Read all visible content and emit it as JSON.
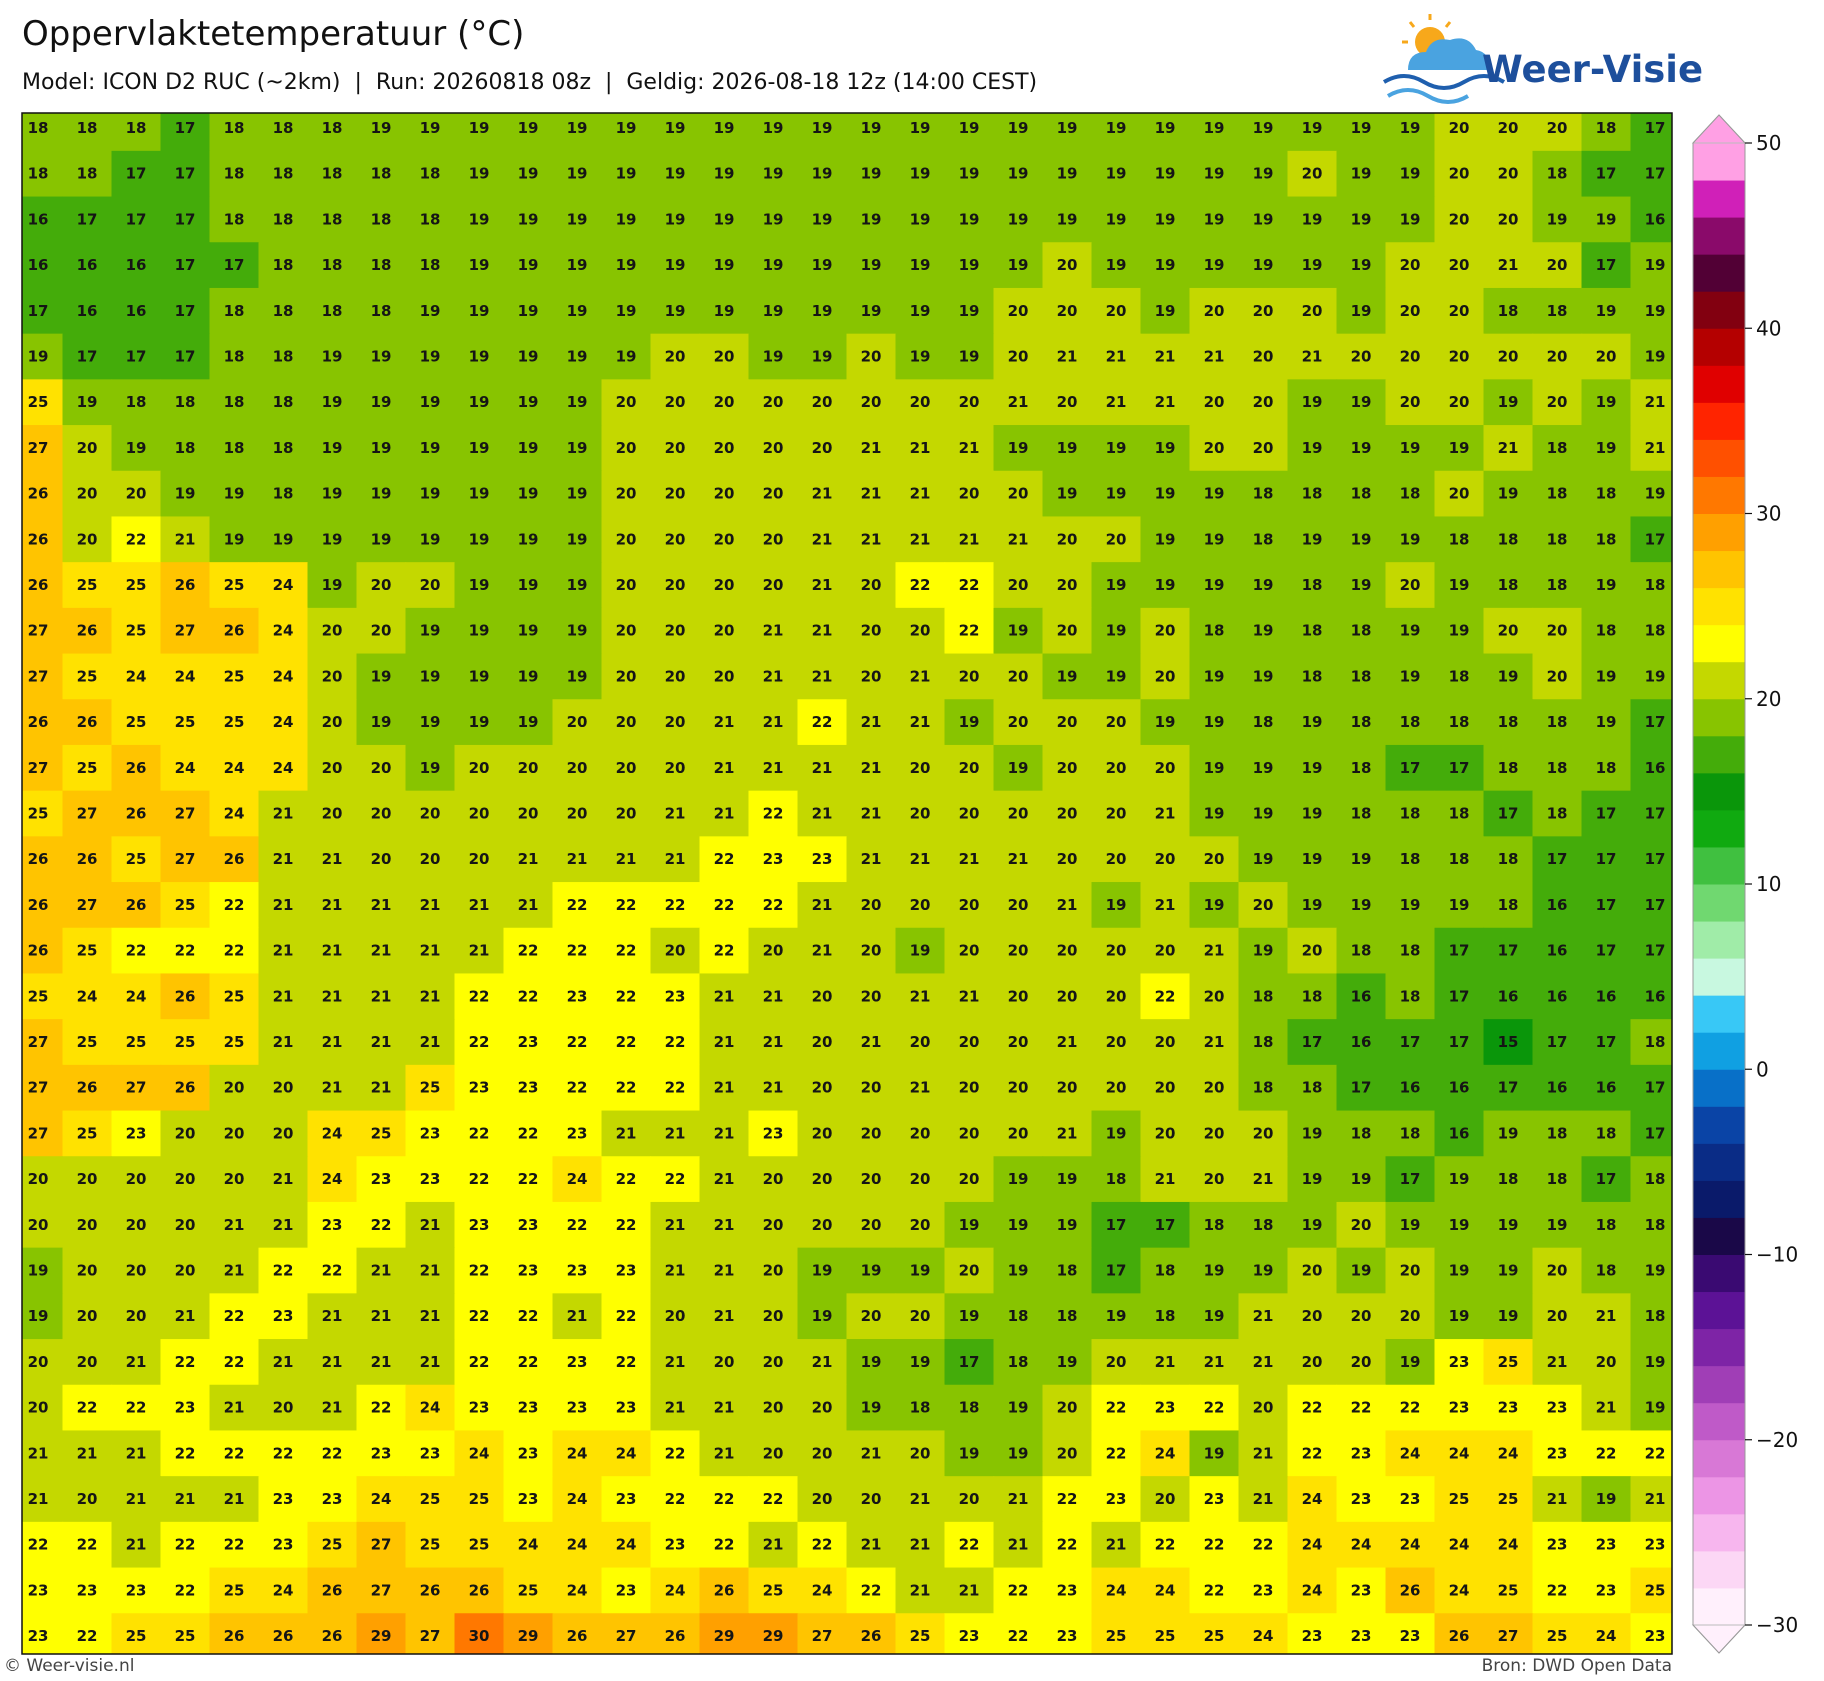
{
  "header": {
    "title": "Oppervlaktetemperatuur (°C)",
    "subtitle": "Model: ICON D2 RUC (~2km)  |  Run: 20260818 08z  |  Geldig: 2026-08-18 12z (14:00 CEST)",
    "logo": "Weer-Visie"
  },
  "map": {
    "grid": [
      [
        18,
        18,
        18,
        17,
        18,
        18,
        18,
        19,
        19,
        19,
        19,
        19,
        19,
        19,
        19,
        19,
        19,
        19,
        19,
        19,
        19,
        19,
        19,
        19,
        19,
        19,
        19,
        19,
        19,
        20,
        20,
        20,
        18,
        17
      ],
      [
        18,
        18,
        17,
        17,
        18,
        18,
        18,
        18,
        18,
        19,
        19,
        19,
        19,
        19,
        19,
        19,
        19,
        19,
        19,
        19,
        19,
        19,
        19,
        19,
        19,
        19,
        20,
        19,
        19,
        20,
        20,
        18,
        17,
        17
      ],
      [
        16,
        17,
        17,
        17,
        18,
        18,
        18,
        18,
        18,
        19,
        19,
        19,
        19,
        19,
        19,
        19,
        19,
        19,
        19,
        19,
        19,
        19,
        19,
        19,
        19,
        19,
        19,
        19,
        19,
        20,
        20,
        19,
        19,
        16
      ],
      [
        16,
        16,
        16,
        17,
        17,
        18,
        18,
        18,
        18,
        19,
        19,
        19,
        19,
        19,
        19,
        19,
        19,
        19,
        19,
        19,
        19,
        20,
        19,
        19,
        19,
        19,
        19,
        19,
        20,
        20,
        21,
        20,
        17,
        19
      ],
      [
        17,
        16,
        16,
        17,
        18,
        18,
        18,
        18,
        19,
        19,
        19,
        19,
        19,
        19,
        19,
        19,
        19,
        19,
        19,
        19,
        20,
        20,
        20,
        19,
        20,
        20,
        20,
        19,
        20,
        20,
        18,
        18,
        19,
        19
      ],
      [
        19,
        17,
        17,
        17,
        18,
        18,
        19,
        19,
        19,
        19,
        19,
        19,
        19,
        20,
        20,
        19,
        19,
        20,
        19,
        19,
        20,
        21,
        21,
        21,
        21,
        20,
        21,
        20,
        20,
        20,
        20,
        20,
        20,
        19
      ],
      [
        25,
        19,
        18,
        18,
        18,
        18,
        19,
        19,
        19,
        19,
        19,
        19,
        20,
        20,
        20,
        20,
        20,
        20,
        20,
        20,
        21,
        20,
        21,
        21,
        20,
        20,
        19,
        19,
        20,
        20,
        19,
        20,
        19,
        21
      ],
      [
        27,
        20,
        19,
        18,
        18,
        18,
        19,
        19,
        19,
        19,
        19,
        19,
        20,
        20,
        20,
        20,
        20,
        21,
        21,
        21,
        19,
        19,
        19,
        19,
        20,
        20,
        19,
        19,
        19,
        19,
        21,
        18,
        19,
        21
      ],
      [
        26,
        20,
        20,
        19,
        19,
        18,
        19,
        19,
        19,
        19,
        19,
        19,
        20,
        20,
        20,
        20,
        21,
        21,
        21,
        20,
        20,
        19,
        19,
        19,
        19,
        18,
        18,
        18,
        18,
        20,
        19,
        18,
        18,
        19
      ],
      [
        26,
        20,
        22,
        21,
        19,
        19,
        19,
        19,
        19,
        19,
        19,
        19,
        20,
        20,
        20,
        20,
        21,
        21,
        21,
        21,
        21,
        20,
        20,
        19,
        19,
        18,
        19,
        19,
        19,
        18,
        18,
        18,
        18,
        17
      ],
      [
        26,
        25,
        25,
        26,
        25,
        24,
        19,
        20,
        20,
        19,
        19,
        19,
        20,
        20,
        20,
        20,
        21,
        20,
        22,
        22,
        20,
        20,
        19,
        19,
        19,
        19,
        18,
        19,
        20,
        19,
        18,
        18,
        19,
        18
      ],
      [
        27,
        26,
        25,
        27,
        26,
        24,
        20,
        20,
        19,
        19,
        19,
        19,
        20,
        20,
        20,
        21,
        21,
        20,
        20,
        22,
        19,
        20,
        19,
        20,
        18,
        19,
        18,
        18,
        19,
        19,
        20,
        20,
        18,
        18
      ],
      [
        27,
        25,
        24,
        24,
        25,
        24,
        20,
        19,
        19,
        19,
        19,
        19,
        20,
        20,
        20,
        21,
        21,
        20,
        21,
        20,
        20,
        19,
        19,
        20,
        19,
        19,
        18,
        18,
        19,
        18,
        19,
        20,
        19,
        19
      ],
      [
        26,
        26,
        25,
        25,
        25,
        24,
        20,
        19,
        19,
        19,
        19,
        20,
        20,
        20,
        21,
        21,
        22,
        21,
        21,
        19,
        20,
        20,
        20,
        19,
        19,
        18,
        19,
        18,
        18,
        18,
        18,
        18,
        19,
        17
      ],
      [
        27,
        25,
        26,
        24,
        24,
        24,
        20,
        20,
        19,
        20,
        20,
        20,
        20,
        20,
        21,
        21,
        21,
        21,
        20,
        20,
        19,
        20,
        20,
        20,
        19,
        19,
        19,
        18,
        17,
        17,
        18,
        18,
        18,
        16
      ],
      [
        25,
        27,
        26,
        27,
        24,
        21,
        20,
        20,
        20,
        20,
        20,
        20,
        20,
        21,
        21,
        22,
        21,
        21,
        20,
        20,
        20,
        20,
        20,
        21,
        19,
        19,
        19,
        18,
        18,
        18,
        17,
        18,
        17,
        17
      ],
      [
        26,
        26,
        25,
        27,
        26,
        21,
        21,
        20,
        20,
        20,
        21,
        21,
        21,
        21,
        22,
        23,
        23,
        21,
        21,
        21,
        21,
        20,
        20,
        20,
        20,
        19,
        19,
        19,
        18,
        18,
        18,
        17,
        17,
        17
      ],
      [
        26,
        27,
        26,
        25,
        22,
        21,
        21,
        21,
        21,
        21,
        21,
        22,
        22,
        22,
        22,
        22,
        21,
        20,
        20,
        20,
        20,
        21,
        19,
        21,
        19,
        20,
        19,
        19,
        19,
        19,
        18,
        16,
        17,
        17
      ],
      [
        26,
        25,
        22,
        22,
        22,
        21,
        21,
        21,
        21,
        21,
        22,
        22,
        22,
        20,
        22,
        20,
        21,
        20,
        19,
        20,
        20,
        20,
        20,
        20,
        21,
        19,
        20,
        18,
        18,
        17,
        17,
        16,
        17,
        17
      ],
      [
        25,
        24,
        24,
        26,
        25,
        21,
        21,
        21,
        21,
        22,
        22,
        23,
        22,
        23,
        21,
        21,
        20,
        20,
        21,
        21,
        20,
        20,
        20,
        22,
        20,
        18,
        18,
        16,
        18,
        17,
        16,
        16,
        16,
        16
      ],
      [
        27,
        25,
        25,
        25,
        25,
        21,
        21,
        21,
        21,
        22,
        23,
        22,
        22,
        22,
        21,
        21,
        20,
        21,
        20,
        20,
        20,
        21,
        20,
        20,
        21,
        18,
        17,
        16,
        17,
        17,
        15,
        17,
        17,
        18
      ],
      [
        27,
        26,
        27,
        26,
        20,
        20,
        21,
        21,
        25,
        23,
        23,
        22,
        22,
        22,
        21,
        21,
        20,
        20,
        21,
        20,
        20,
        20,
        20,
        20,
        20,
        18,
        18,
        17,
        16,
        16,
        17,
        16,
        16,
        17
      ],
      [
        27,
        25,
        23,
        20,
        20,
        20,
        24,
        25,
        23,
        22,
        22,
        23,
        21,
        21,
        21,
        23,
        20,
        20,
        20,
        20,
        20,
        21,
        19,
        20,
        20,
        20,
        19,
        18,
        18,
        16,
        19,
        18,
        18,
        17
      ],
      [
        20,
        20,
        20,
        20,
        20,
        21,
        24,
        23,
        23,
        22,
        22,
        24,
        22,
        22,
        21,
        20,
        20,
        20,
        20,
        20,
        19,
        19,
        18,
        21,
        20,
        21,
        19,
        19,
        17,
        19,
        18,
        18,
        17,
        18
      ],
      [
        20,
        20,
        20,
        20,
        21,
        21,
        23,
        22,
        21,
        23,
        23,
        22,
        22,
        21,
        21,
        20,
        20,
        20,
        20,
        19,
        19,
        19,
        17,
        17,
        18,
        18,
        19,
        20,
        19,
        19,
        19,
        19,
        18,
        18
      ],
      [
        19,
        20,
        20,
        20,
        21,
        22,
        22,
        21,
        21,
        22,
        23,
        23,
        23,
        21,
        21,
        20,
        19,
        19,
        19,
        20,
        19,
        18,
        17,
        18,
        19,
        19,
        20,
        19,
        20,
        19,
        19,
        20,
        18,
        19
      ],
      [
        19,
        20,
        20,
        21,
        22,
        23,
        21,
        21,
        21,
        22,
        22,
        21,
        22,
        20,
        21,
        20,
        19,
        20,
        20,
        19,
        18,
        18,
        19,
        18,
        19,
        21,
        20,
        20,
        20,
        19,
        19,
        20,
        21,
        18
      ],
      [
        20,
        20,
        21,
        22,
        22,
        21,
        21,
        21,
        21,
        22,
        22,
        23,
        22,
        21,
        20,
        20,
        21,
        19,
        19,
        17,
        18,
        19,
        20,
        21,
        21,
        21,
        20,
        20,
        19,
        23,
        25,
        21,
        20,
        19
      ],
      [
        20,
        22,
        22,
        23,
        21,
        20,
        21,
        22,
        24,
        23,
        23,
        23,
        23,
        21,
        21,
        20,
        20,
        19,
        18,
        18,
        19,
        20,
        22,
        23,
        22,
        20,
        22,
        22,
        22,
        23,
        23,
        23,
        21,
        19
      ],
      [
        21,
        21,
        21,
        22,
        22,
        22,
        22,
        23,
        23,
        24,
        23,
        24,
        24,
        22,
        21,
        20,
        20,
        21,
        20,
        19,
        19,
        20,
        22,
        24,
        19,
        21,
        22,
        23,
        24,
        24,
        24,
        23,
        22,
        22
      ],
      [
        21,
        20,
        21,
        21,
        21,
        23,
        23,
        24,
        25,
        25,
        23,
        24,
        23,
        22,
        22,
        22,
        20,
        20,
        21,
        20,
        21,
        22,
        23,
        20,
        23,
        21,
        24,
        23,
        23,
        25,
        25,
        21,
        19,
        21
      ],
      [
        22,
        22,
        21,
        22,
        22,
        23,
        25,
        27,
        25,
        25,
        24,
        24,
        24,
        23,
        22,
        21,
        22,
        21,
        21,
        22,
        21,
        22,
        21,
        22,
        22,
        22,
        24,
        24,
        24,
        24,
        24,
        23,
        23,
        23
      ],
      [
        23,
        23,
        23,
        22,
        25,
        24,
        26,
        27,
        26,
        26,
        25,
        24,
        23,
        24,
        26,
        25,
        24,
        22,
        21,
        21,
        22,
        23,
        24,
        24,
        22,
        23,
        24,
        23,
        26,
        24,
        25,
        22,
        23,
        25
      ],
      [
        23,
        22,
        25,
        25,
        26,
        26,
        26,
        29,
        27,
        30,
        29,
        26,
        27,
        26,
        29,
        29,
        27,
        26,
        25,
        23,
        22,
        23,
        25,
        25,
        25,
        24,
        23,
        23,
        23,
        26,
        27,
        25,
        24,
        23
      ]
    ],
    "colorbar": {
      "lim": [
        -30,
        50
      ],
      "ticks": [
        {
          "value": -30,
          "label": "−30"
        },
        {
          "value": -20,
          "label": "−20"
        },
        {
          "value": -10,
          "label": "−10"
        },
        0,
        10,
        20,
        30,
        40,
        50
      ],
      "colors": [
        "#fff0fc",
        "#fcd7f5",
        "#f7b6ee",
        "#ec95e5",
        "#d878d6",
        "#bf5ac8",
        "#a03eb6",
        "#7e24a6",
        "#5c1296",
        "#3a0a72",
        "#1a0848",
        "#0a1a6a",
        "#0a2c86",
        "#0a44a6",
        "#0870c8",
        "#10a0e2",
        "#38c8f6",
        "#c8f8e0",
        "#a0eca8",
        "#70d870",
        "#40c040",
        "#10aa10",
        "#0a960a",
        "#44ac0a",
        "#88c400",
        "#c4d800",
        "#ffff00",
        "#ffe200",
        "#ffc400",
        "#ffa000",
        "#ff7800",
        "#ff5000",
        "#ff2400",
        "#e00000",
        "#b40000",
        "#820010",
        "#520035",
        "#8a0a6a",
        "#d020b8",
        "#ffa0e4"
      ]
    }
  },
  "footer": {
    "left": "© Weer-visie.nl",
    "right": "Bron: DWD Open Data"
  }
}
